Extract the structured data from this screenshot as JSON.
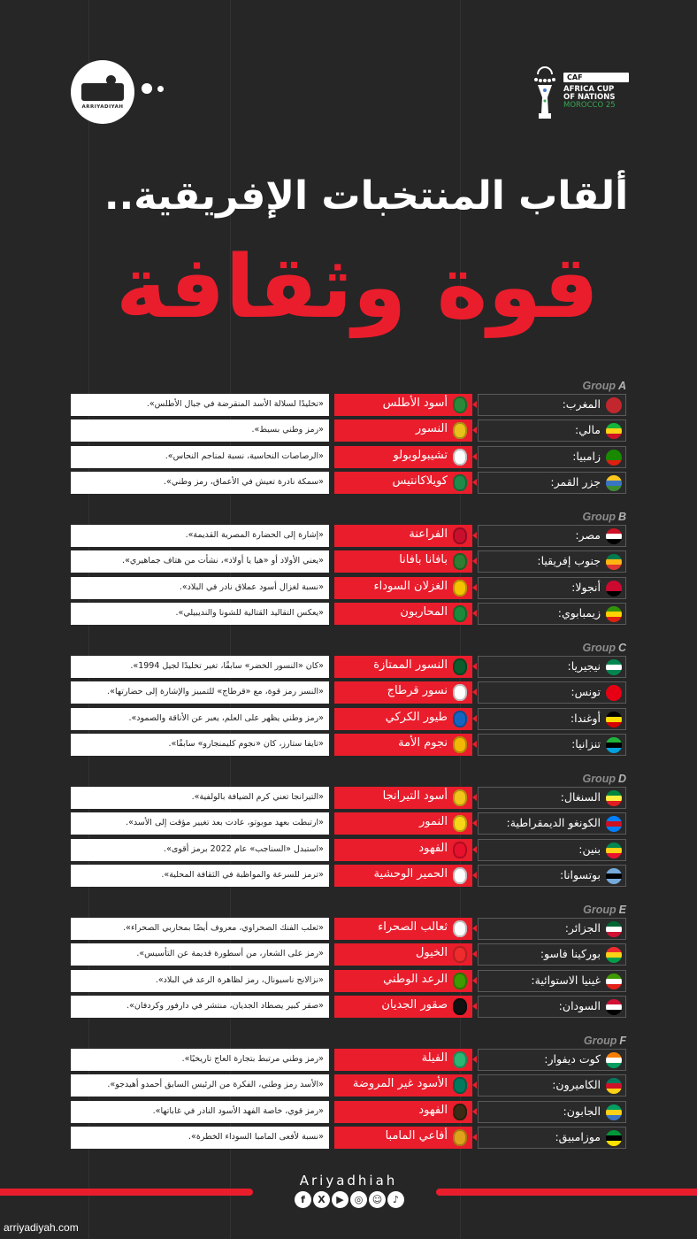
{
  "header": {
    "logo_brand": "ARRIYADIYAH",
    "caf_badge": "CAF",
    "caf_line1": "AFRICA CUP",
    "caf_line2": "OF NATIONS",
    "caf_line3": "MOROCCO 25",
    "title_line1": "ألقاب المنتخبات الإفريقية..",
    "title_line2": "قوة وثقافة"
  },
  "colors": {
    "background": "#262626",
    "accent_red": "#ea1d2c",
    "caf_green": "#3aa655"
  },
  "group_prefix": "Group",
  "groups": [
    {
      "letter": "A",
      "teams": [
        {
          "country": "المغرب:",
          "nickname": "أسود الأطلس",
          "description": "«تخليدًا لسلالة الأسد المنقرضة في جبال الأطلس».",
          "flag": [
            "#c1272d",
            "#c1272d",
            "#c1272d"
          ],
          "crest": "#2a8a3a"
        },
        {
          "country": "مالي:",
          "nickname": "النسور",
          "description": "«رمز وطني بسيط».",
          "flag": [
            "#14b53a",
            "#fcd116",
            "#ce1126"
          ],
          "crest": "#e8c21a"
        },
        {
          "country": "زامبيا:",
          "nickname": "تشيبولوبولو",
          "description": "«الرصاصات النحاسية، نسبة لمناجم النحاس».",
          "flag": [
            "#198a00",
            "#198a00",
            "#de2010"
          ],
          "crest": "#ffffff"
        },
        {
          "country": "جزر القمر:",
          "nickname": "كويلاكانتيس",
          "description": "«سمكة نادرة تعيش في الأعماق، رمز وطني».",
          "flag": [
            "#ffc61e",
            "#3a75c4",
            "#3d8e33"
          ],
          "crest": "#1f8a4a"
        }
      ]
    },
    {
      "letter": "B",
      "teams": [
        {
          "country": "مصر:",
          "nickname": "الفراعنة",
          "description": "«إشارة إلى الحضارة المصرية القديمة».",
          "flag": [
            "#ce1126",
            "#ffffff",
            "#000000"
          ],
          "crest": "#c8102e"
        },
        {
          "country": "جنوب إفريقيا:",
          "nickname": "بافانا بافانا",
          "description": "«يعني الأولاد أو «هيا يا أولاد»، نشأت من هتاف جماهيري».",
          "flag": [
            "#007a4d",
            "#ffb612",
            "#de3831"
          ],
          "crest": "#2e7d32"
        },
        {
          "country": "أنجولا:",
          "nickname": "الغزلان السوداء",
          "description": "«نسبة لغزال أسود عملاق نادر في البلاد».",
          "flag": [
            "#cc092f",
            "#cc092f",
            "#000000"
          ],
          "crest": "#f5c400"
        },
        {
          "country": "زيمبابوي:",
          "nickname": "المحاربون",
          "description": "«يعكس التقاليد القتالية للشونا والنديبيلي».",
          "flag": [
            "#319208",
            "#ffd200",
            "#de2010"
          ],
          "crest": "#1b8a3a"
        }
      ]
    },
    {
      "letter": "C",
      "teams": [
        {
          "country": "نيجيريا:",
          "nickname": "النسور الممتازة",
          "description": "«كان «النسور الخضر» سابقًا، تغير تخليدًا لجيل 1994».",
          "flag": [
            "#008751",
            "#ffffff",
            "#008751"
          ],
          "crest": "#0b5d2e"
        },
        {
          "country": "تونس:",
          "nickname": "نسور قرطاج",
          "description": "«النسر رمز قوة، مع «قرطاج» للتمييز والإشارة إلى حضارتها».",
          "flag": [
            "#e70013",
            "#e70013",
            "#e70013"
          ],
          "crest": "#ffffff"
        },
        {
          "country": "أوغندا:",
          "nickname": "طيور الكركي",
          "description": "«رمز وطني يظهر على العلم، يعبر عن الأناقة والصمود».",
          "flag": [
            "#000000",
            "#fcdc04",
            "#d90000"
          ],
          "crest": "#1565c0"
        },
        {
          "country": "تنزانيا:",
          "nickname": "نجوم الأمة",
          "description": "«تايفا ستارز، كان «نجوم كليمنجارو» سابقًا».",
          "flag": [
            "#1eb53a",
            "#000000",
            "#00a3dd"
          ],
          "crest": "#f2b705"
        }
      ]
    },
    {
      "letter": "D",
      "teams": [
        {
          "country": "السنغال:",
          "nickname": "أسود التيرانجا",
          "description": "«التيرانجا تعني كرم الضيافة بالولفية».",
          "flag": [
            "#00853f",
            "#fdef42",
            "#e31b23"
          ],
          "crest": "#f2c318"
        },
        {
          "country": "الكونغو الديمقراطية:",
          "nickname": "النمور",
          "description": "«ارتبطت بعهد موبوتو، عادت بعد تغيير مؤقت إلى الأسد».",
          "flag": [
            "#007fff",
            "#ce1021",
            "#007fff"
          ],
          "crest": "#f7d618"
        },
        {
          "country": "بنين:",
          "nickname": "الفهود",
          "description": "«استبدل «السناجب» عام 2022 برمز أقوى».",
          "flag": [
            "#008751",
            "#fcd116",
            "#e8112d"
          ],
          "crest": "#e8112d"
        },
        {
          "country": "بوتسوانا:",
          "nickname": "الحمير الوحشية",
          "description": "«ترمز للسرعة والمواظبة في الثقافة المحلية».",
          "flag": [
            "#75aadb",
            "#000000",
            "#75aadb"
          ],
          "crest": "#ffffff"
        }
      ]
    },
    {
      "letter": "E",
      "teams": [
        {
          "country": "الجزائر:",
          "nickname": "ثعالب الصحراء",
          "description": "«ثعلب الفنك الصحراوي، معروف أيضًا بمحاربي الصحراء».",
          "flag": [
            "#006633",
            "#ffffff",
            "#d21034"
          ],
          "crest": "#ffffff"
        },
        {
          "country": "بوركينا فاسو:",
          "nickname": "الخيول",
          "description": "«رمز على الشعار، من أسطورة قديمة عن التأسيس».",
          "flag": [
            "#ef2b2d",
            "#fcd116",
            "#009e49"
          ],
          "crest": "#ef2b2d"
        },
        {
          "country": "غينيا الاستوائية:",
          "nickname": "الرعد الوطني",
          "description": "«نزالانج ناسيونال، رمز لظاهرة الرعد في البلاد».",
          "flag": [
            "#3e9a00",
            "#ffffff",
            "#e32118"
          ],
          "crest": "#3e9a00"
        },
        {
          "country": "السودان:",
          "nickname": "صقور الجديان",
          "description": "«صقر كبير يصطاد الجديان، منتشر في دارفور وكردفان».",
          "flag": [
            "#d21034",
            "#ffffff",
            "#000000"
          ],
          "crest": "#111111"
        }
      ]
    },
    {
      "letter": "F",
      "teams": [
        {
          "country": "كوت ديفوار:",
          "nickname": "الفيلة",
          "description": "«رمز وطني مرتبط بتجارة العاج تاريخيًا».",
          "flag": [
            "#f77f00",
            "#ffffff",
            "#009e60"
          ],
          "crest": "#2bb673"
        },
        {
          "country": "الكاميرون:",
          "nickname": "الأسود غير المروضة",
          "description": "«الأسد رمز وطني، الفكرة من الرئيس السابق أحمدو أهيدجو».",
          "flag": [
            "#007a5e",
            "#ce1126",
            "#fcd116"
          ],
          "crest": "#007a5e"
        },
        {
          "country": "الجابون:",
          "nickname": "الفهود",
          "description": "«رمز قوي، خاصة الفهد الأسود النادر في غاباتها».",
          "flag": [
            "#009e60",
            "#fcd116",
            "#3a75c4"
          ],
          "crest": "#3b2a14"
        },
        {
          "country": "موزامبيق:",
          "nickname": "أفاعي المامبا",
          "description": "«نسبة لأفعى المامبا السوداء الخطرة».",
          "flag": [
            "#009739",
            "#000000",
            "#fce100"
          ],
          "crest": "#e0a21a"
        }
      ]
    }
  ],
  "footer": {
    "brand": "Ariyadhiah",
    "socials": [
      {
        "icon": "facebook-icon",
        "glyph": "f"
      },
      {
        "icon": "x-icon",
        "glyph": "X"
      },
      {
        "icon": "youtube-icon",
        "glyph": "▶"
      },
      {
        "icon": "instagram-icon",
        "glyph": "◎"
      },
      {
        "icon": "snapchat-icon",
        "glyph": "☺"
      },
      {
        "icon": "tiktok-icon",
        "glyph": "♪"
      }
    ],
    "website": "arriyadiyah.com"
  }
}
